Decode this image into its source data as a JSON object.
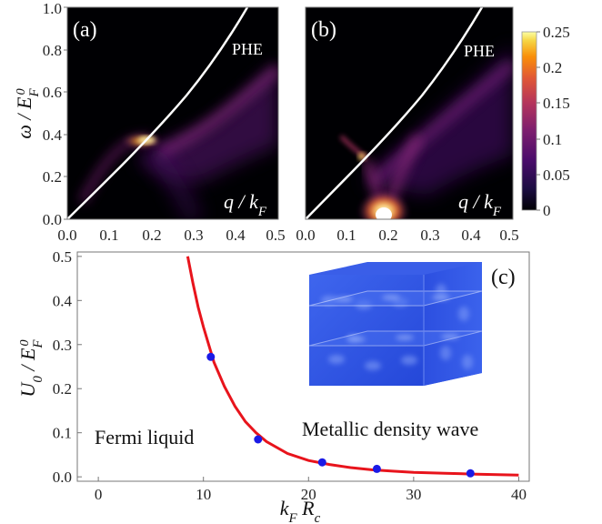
{
  "chart_data": [
    {
      "type": "heatmap",
      "panel_label": "(a)",
      "xlabel": "q / k_F",
      "ylabel": "ω / E_F^0",
      "xlim": [
        0.0,
        0.5
      ],
      "ylim": [
        0.0,
        1.0
      ],
      "x_ticks": [
        "0.0",
        "0.1",
        "0.2",
        "0.3",
        "0.4",
        "0.5"
      ],
      "y_ticks": [
        "0.0",
        "0.2",
        "0.4",
        "0.6",
        "0.8",
        "1.0"
      ],
      "annotations": [
        "PHE"
      ],
      "phe_boundary_line": [
        [
          0.0,
          0.0
        ],
        [
          0.1,
          0.21
        ],
        [
          0.2,
          0.44
        ],
        [
          0.3,
          0.69
        ],
        [
          0.38,
          0.9
        ],
        [
          0.42,
          1.0
        ]
      ],
      "features": {
        "bright_peak": {
          "x": 0.17,
          "y": 0.37
        },
        "colormap": "inferno",
        "zlim": [
          0,
          0.25
        ]
      }
    },
    {
      "type": "heatmap",
      "panel_label": "(b)",
      "xlabel": "q / k_F",
      "xlim": [
        0.0,
        0.5
      ],
      "ylim": [
        0.0,
        1.0
      ],
      "x_ticks": [
        "0.0",
        "0.1",
        "0.2",
        "0.3",
        "0.4",
        "0.5"
      ],
      "annotations": [
        "PHE"
      ],
      "phe_boundary_line": [
        [
          0.0,
          0.0
        ],
        [
          0.1,
          0.21
        ],
        [
          0.2,
          0.44
        ],
        [
          0.3,
          0.69
        ],
        [
          0.38,
          0.9
        ],
        [
          0.42,
          1.0
        ]
      ],
      "features": {
        "bright_peak": {
          "x": 0.19,
          "y": 0.02
        },
        "colormap": "inferno",
        "zlim": [
          0,
          0.25
        ]
      },
      "colorbar_ticks": [
        "0",
        "0.05",
        "0.1",
        "0.15",
        "0.2",
        "0.25"
      ]
    },
    {
      "type": "line",
      "panel_label": "(c)",
      "xlabel": "k_F R_c",
      "ylabel": "U_0 / E_F^0",
      "xlim": [
        -2,
        41
      ],
      "ylim": [
        -0.01,
        0.51
      ],
      "x_ticks": [
        "0",
        "10",
        "20",
        "30",
        "40"
      ],
      "y_ticks": [
        "0.0",
        "0.1",
        "0.2",
        "0.3",
        "0.4",
        "0.5"
      ],
      "annotations": [
        "Fermi liquid",
        "Metallic density wave"
      ],
      "series": [
        {
          "kind": "curve",
          "color": "#e8141c",
          "x": [
            8.5,
            9,
            9.5,
            10,
            10.5,
            11,
            12,
            13,
            14,
            15,
            16,
            18,
            20,
            22,
            24,
            26,
            28,
            30,
            33,
            36,
            40
          ],
          "y": [
            0.5,
            0.44,
            0.385,
            0.34,
            0.3,
            0.26,
            0.205,
            0.16,
            0.125,
            0.1,
            0.08,
            0.053,
            0.037,
            0.028,
            0.021,
            0.016,
            0.013,
            0.01,
            0.008,
            0.006,
            0.004
          ]
        },
        {
          "kind": "points",
          "color": "#1a1ae6",
          "x": [
            10.7,
            15.2,
            21.3,
            26.5,
            35.4
          ],
          "y": [
            0.272,
            0.085,
            0.033,
            0.018,
            0.008
          ]
        }
      ]
    }
  ],
  "colors": {
    "curve": "#e8141c",
    "points": "#1a1ae6",
    "phe_line": "#ffffff"
  }
}
